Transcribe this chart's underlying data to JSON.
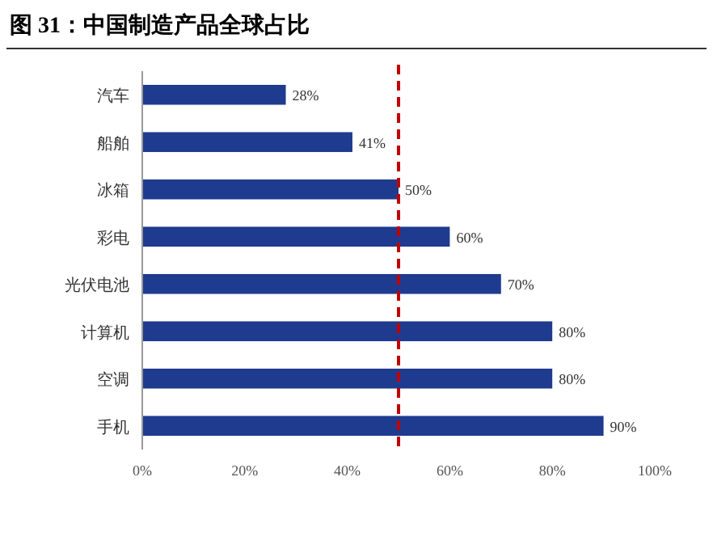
{
  "chart_data": {
    "type": "bar",
    "orientation": "horizontal",
    "title": "图 31：中国制造产品全球占比",
    "categories": [
      "汽车",
      "船舶",
      "冰箱",
      "彩电",
      "光伏电池",
      "计算机",
      "空调",
      "手机"
    ],
    "values": [
      28,
      41,
      50,
      60,
      70,
      80,
      80,
      90
    ],
    "value_labels": [
      "28%",
      "41%",
      "50%",
      "60%",
      "70%",
      "80%",
      "80%",
      "90%"
    ],
    "color": "#1f3b8f",
    "xlim": [
      0,
      100
    ],
    "xticks": [
      {
        "value": 0,
        "label": "0%"
      },
      {
        "value": 20,
        "label": "20%"
      },
      {
        "value": 40,
        "label": "40%"
      },
      {
        "value": 60,
        "label": "60%"
      },
      {
        "value": 80,
        "label": "80%"
      },
      {
        "value": 100,
        "label": "100%"
      }
    ],
    "ref_lines": [
      {
        "axis": "x",
        "value": 50,
        "color": "#c00000",
        "line_style": "dashed"
      }
    ]
  }
}
